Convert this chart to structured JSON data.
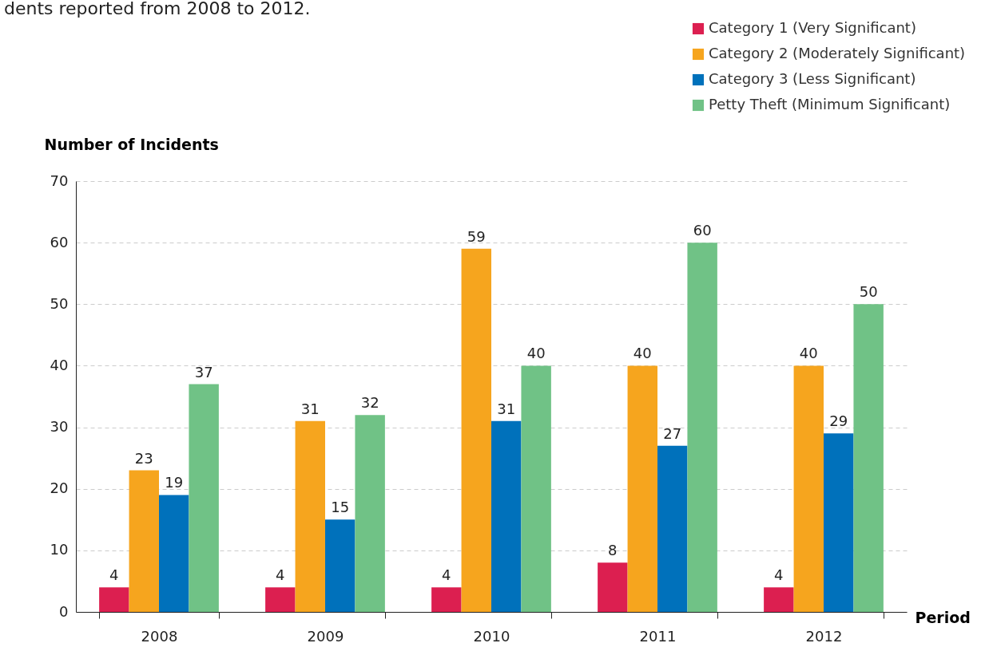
{
  "chart_data": {
    "type": "bar",
    "annotations": [
      "dents reported from 2008 to 2012."
    ],
    "xlabel": "Period",
    "ylabel": "Number of Incidents",
    "categories": [
      "2008",
      "2009",
      "2010",
      "2011",
      "2012"
    ],
    "series": [
      {
        "name": "Category 1 (Very Significant)",
        "color": "#dc1f50",
        "values": [
          4,
          4,
          4,
          8,
          4
        ]
      },
      {
        "name": "Category 2 (Moderately Significant)",
        "color": "#f6a51e",
        "values": [
          23,
          31,
          59,
          40,
          40
        ]
      },
      {
        "name": "Category 3 (Less Significant)",
        "color": "#0071bb",
        "values": [
          19,
          15,
          31,
          27,
          29
        ]
      },
      {
        "name": "Petty Theft (Minimum Significant)",
        "color": "#70c286",
        "values": [
          37,
          32,
          40,
          60,
          50
        ]
      }
    ],
    "ylim": [
      0,
      70
    ],
    "yticks": [
      0,
      10,
      20,
      30,
      40,
      50,
      60,
      70
    ],
    "grid": "y",
    "legend": "top right",
    "data_labels": true
  }
}
